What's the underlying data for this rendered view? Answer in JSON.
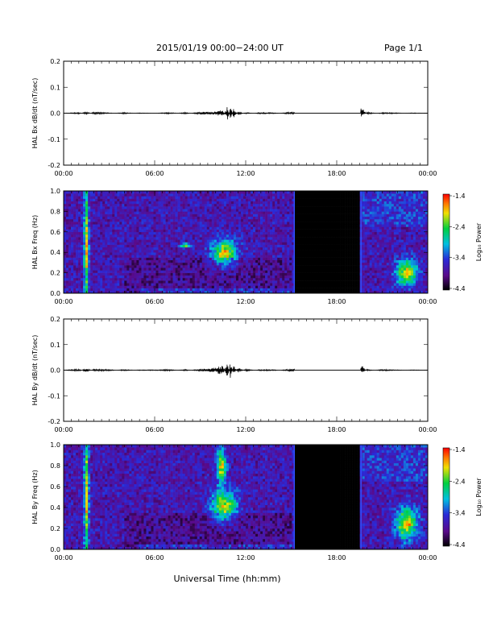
{
  "header": {
    "title": "2015/01/19  00:00−24:00 UT",
    "page": "Page 1/1"
  },
  "xlabel": "Universal Time (hh:mm)",
  "chart_data": [
    {
      "type": "line",
      "ylabel": "HAL Bx dB/dt (nT/sec)",
      "ylim": [
        -0.2,
        0.2
      ],
      "yticks": [
        "0.2",
        "0.1",
        "0.0",
        "-0.1",
        "-0.2"
      ],
      "xlim": [
        0,
        24
      ],
      "xticks": [
        "00:00",
        "06:00",
        "12:00",
        "18:00",
        "00:00"
      ],
      "trace_color": "#000000",
      "series": [
        {
          "x": [
            0,
            1,
            1.5,
            2,
            3,
            4,
            5,
            6,
            7,
            8,
            9,
            10,
            10.5,
            10.8,
            11,
            11.2,
            11.5,
            12,
            13,
            14,
            15,
            19.7,
            20,
            21,
            22,
            23,
            24
          ],
          "y": [
            0,
            0.002,
            -0.004,
            0.003,
            0.001,
            -0.002,
            0.001,
            0,
            0.002,
            -0.002,
            0.003,
            0.004,
            0.01,
            -0.018,
            0.02,
            -0.012,
            0.004,
            -0.002,
            0.002,
            0.001,
            -0.003,
            0.012,
            -0.003,
            0.002,
            0.001,
            -0.001,
            0
          ]
        }
      ]
    },
    {
      "type": "heatmap",
      "ylabel": "HAL Bx Freq (Hz)",
      "ylim": [
        0,
        1.0
      ],
      "yticks": [
        "1.0",
        "0.8",
        "0.6",
        "0.4",
        "0.2",
        "0.0"
      ],
      "xlim": [
        0,
        24
      ],
      "xticks": [
        "00:00",
        "06:00",
        "12:00",
        "18:00",
        "00:00"
      ],
      "gap_hours": [
        15.2,
        19.6
      ],
      "colorbar": {
        "label": "Log₁₀ Power",
        "ticks": [
          "-1.4",
          "-2.4",
          "-3.4",
          "-4.4"
        ],
        "range": [
          -4.4,
          -1.4
        ]
      },
      "features": [
        {
          "t": 1.5,
          "f": 0.5,
          "dt": 0.15,
          "df": 0.6
        },
        {
          "t": 10.6,
          "f": 0.4,
          "dt": 0.8,
          "df": 0.12
        },
        {
          "t": 8.0,
          "f": 0.47,
          "dt": 0.3,
          "df": 0.02
        },
        {
          "t": 22.6,
          "f": 0.2,
          "dt": 0.7,
          "df": 0.12
        }
      ]
    },
    {
      "type": "line",
      "ylabel": "HAL By dB/dt (nT/sec)",
      "ylim": [
        -0.2,
        0.2
      ],
      "yticks": [
        "0.2",
        "0.1",
        "0.0",
        "-0.1",
        "-0.2"
      ],
      "xlim": [
        0,
        24
      ],
      "xticks": [
        "00:00",
        "06:00",
        "12:00",
        "18:00",
        "00:00"
      ],
      "trace_color": "#000000",
      "series": [
        {
          "x": [
            0,
            1,
            1.5,
            2,
            3,
            4,
            5,
            6,
            7,
            8,
            9,
            10,
            10.5,
            10.8,
            11,
            11.2,
            11.5,
            12,
            13,
            14,
            15,
            19.7,
            20,
            21,
            22,
            23,
            24
          ],
          "y": [
            0,
            0.003,
            -0.005,
            0.003,
            0.002,
            -0.002,
            0.001,
            0.001,
            0.002,
            -0.002,
            0.003,
            0.006,
            0.012,
            -0.02,
            0.024,
            -0.014,
            0.006,
            -0.003,
            0.002,
            0.001,
            -0.003,
            0.01,
            -0.002,
            0.002,
            0.001,
            -0.001,
            0
          ]
        }
      ]
    },
    {
      "type": "heatmap",
      "ylabel": "HAL By Freq (Hz)",
      "ylim": [
        0,
        1.0
      ],
      "yticks": [
        "1.0",
        "0.8",
        "0.6",
        "0.4",
        "0.2",
        "0.0"
      ],
      "xlim": [
        0,
        24
      ],
      "xticks": [
        "00:00",
        "06:00",
        "12:00",
        "18:00",
        "00:00"
      ],
      "gap_hours": [
        15.2,
        19.6
      ],
      "colorbar": {
        "label": "Log₁₀ Power",
        "ticks": [
          "-1.4",
          "-2.4",
          "-3.4",
          "-4.4"
        ],
        "range": [
          -4.4,
          -1.4
        ]
      },
      "features": [
        {
          "t": 1.5,
          "f": 0.5,
          "dt": 0.15,
          "df": 0.6
        },
        {
          "t": 10.6,
          "f": 0.42,
          "dt": 0.8,
          "df": 0.14
        },
        {
          "t": 10.4,
          "f": 0.8,
          "dt": 0.3,
          "df": 0.15
        },
        {
          "t": 22.6,
          "f": 0.25,
          "dt": 0.7,
          "df": 0.15
        }
      ]
    }
  ]
}
